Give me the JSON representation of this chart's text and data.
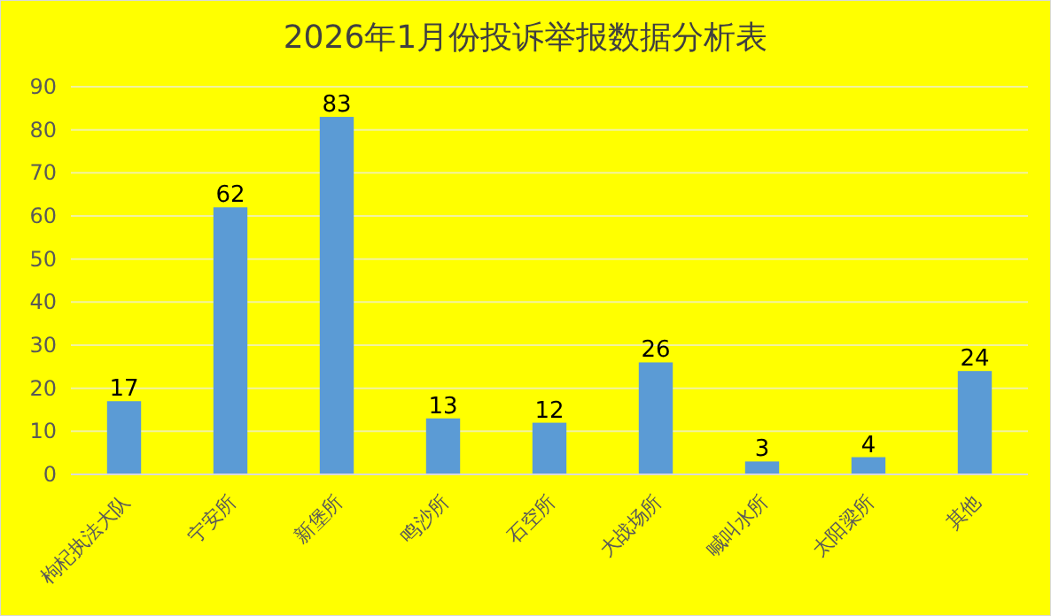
{
  "chart_data": {
    "type": "bar",
    "title": "2026年1月份投诉举报数据分析表",
    "categories": [
      "枸杞执法大队",
      "宁安所",
      "新堡所",
      "鸣沙所",
      "石空所",
      "大战场所",
      "喊叫水所",
      "太阳梁所",
      "其他"
    ],
    "values": [
      17,
      62,
      83,
      13,
      12,
      26,
      3,
      4,
      24
    ],
    "color": "#5b9bd5",
    "ylim": [
      0,
      90
    ],
    "yticks": [
      0,
      10,
      20,
      30,
      40,
      50,
      60,
      70,
      80,
      90
    ],
    "grid": "y",
    "data_labels": true
  }
}
